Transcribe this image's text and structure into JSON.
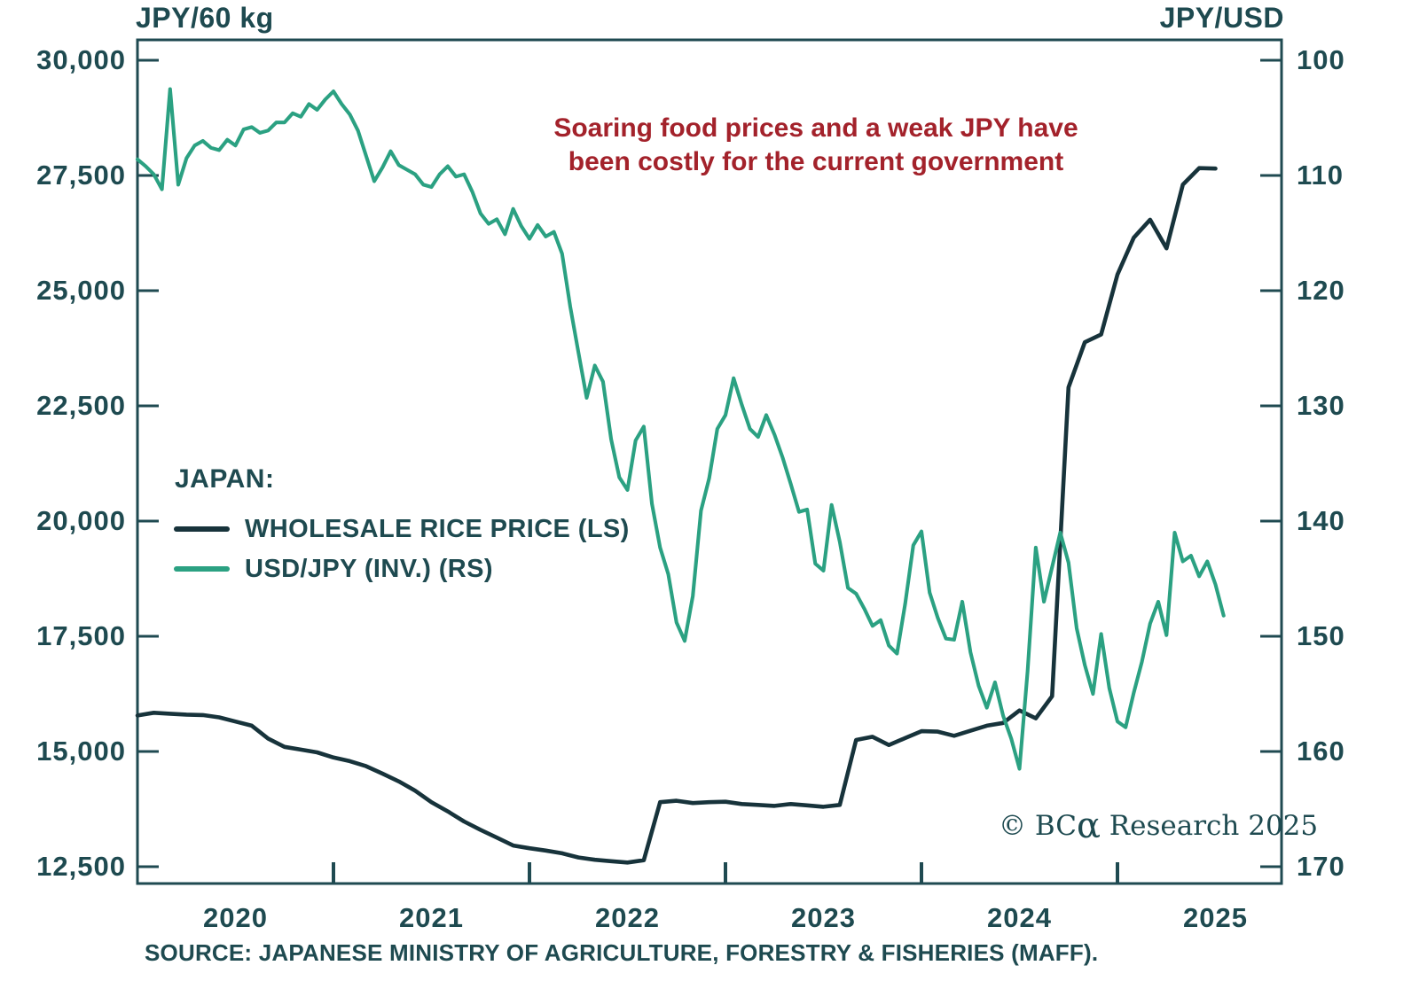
{
  "axes_titles": {
    "left": "JPY/60 kg",
    "right": "JPY/USD"
  },
  "annotation": {
    "line1": "Soaring food prices and a weak JPY have",
    "line2": "been costly for the current government",
    "color": "#A3222B"
  },
  "legend": {
    "title": "JAPAN:",
    "items": [
      {
        "label": "WHOLESALE RICE PRICE (LS)",
        "color": "#17333B"
      },
      {
        "label": "USD/JPY (INV.) (RS)",
        "color": "#2BA182"
      }
    ]
  },
  "watermark": {
    "prefix": "© BC",
    "alpha": "α",
    "suffix": " Research 2025"
  },
  "source_note": "SOURCE: JAPANESE MINISTRY OF AGRICULTURE, FORESTRY & FISHERIES (MAFF).",
  "chart_data": {
    "type": "line",
    "title": "Soaring food prices and a weak JPY have been costly for the current government",
    "grid": false,
    "legend_position": "middle-left",
    "x_axis": {
      "labels": [
        "2020",
        "2021",
        "2022",
        "2023",
        "2024",
        "2025"
      ],
      "tick_years": [
        2021,
        2022,
        2023,
        2024,
        2025
      ],
      "range_years": [
        2020.0,
        2025.83
      ]
    },
    "left_axis": {
      "title": "JPY/60 kg",
      "tick_labels": [
        "30,000",
        "27,500",
        "25,000",
        "22,500",
        "20,000",
        "17,500",
        "15,000",
        "12,500"
      ],
      "tick_values": [
        30000,
        27500,
        25000,
        22500,
        20000,
        17500,
        15000,
        12500
      ],
      "range": [
        12500,
        30000
      ],
      "inverted": false
    },
    "right_axis": {
      "title": "JPY/USD",
      "tick_labels": [
        "100",
        "110",
        "120",
        "130",
        "140",
        "150",
        "160",
        "170"
      ],
      "tick_values": [
        100,
        110,
        120,
        130,
        140,
        150,
        160,
        170
      ],
      "range": [
        100,
        170
      ],
      "inverted": true
    },
    "series": [
      {
        "name": "WHOLESALE RICE PRICE (LS)",
        "axis": "left",
        "color": "#17333B",
        "unit": "JPY per 60 kg",
        "start": "2020-01",
        "points_per_month": 1,
        "values": [
          15780,
          15840,
          15820,
          15800,
          15790,
          15740,
          15650,
          15560,
          15280,
          15100,
          15040,
          14980,
          14870,
          14790,
          14680,
          14520,
          14350,
          14150,
          13900,
          13700,
          13480,
          13300,
          13130,
          12960,
          12900,
          12850,
          12790,
          12700,
          12650,
          12620,
          12590,
          12640,
          13900,
          13930,
          13880,
          13900,
          13910,
          13860,
          13840,
          13820,
          13860,
          13830,
          13800,
          13840,
          15250,
          15320,
          15140,
          15290,
          15440,
          15430,
          15340,
          15450,
          15560,
          15620,
          15890,
          15720,
          16200,
          22900,
          23880,
          24050,
          25350,
          26150,
          26540,
          25920,
          27300,
          27660,
          27650
        ]
      },
      {
        "name": "USD/JPY (INV.) (RS)",
        "axis": "right",
        "color": "#2BA182",
        "unit": "JPY per USD",
        "start": "2020-01",
        "points_per_month": 2,
        "values": [
          108.6,
          109.2,
          109.9,
          111.2,
          102.5,
          110.8,
          108.5,
          107.4,
          107.0,
          107.6,
          107.8,
          106.9,
          107.4,
          106.0,
          105.8,
          106.3,
          106.1,
          105.4,
          105.4,
          104.6,
          104.9,
          103.8,
          104.3,
          103.4,
          102.7,
          103.8,
          104.7,
          106.1,
          108.3,
          110.5,
          109.3,
          107.9,
          109.1,
          109.5,
          109.9,
          110.8,
          111.0,
          109.9,
          109.2,
          110.1,
          109.9,
          111.4,
          113.3,
          114.2,
          113.8,
          115.1,
          112.9,
          114.4,
          115.5,
          114.3,
          115.3,
          114.9,
          116.8,
          121.4,
          125.4,
          129.3,
          126.5,
          127.9,
          132.9,
          136.2,
          137.3,
          133.0,
          131.8,
          138.5,
          142.3,
          144.6,
          148.8,
          150.4,
          146.5,
          139.1,
          136.3,
          132.0,
          130.8,
          127.6,
          129.9,
          132.0,
          132.7,
          130.8,
          132.5,
          134.5,
          136.8,
          139.2,
          139.0,
          143.7,
          144.3,
          138.6,
          141.8,
          145.8,
          146.3,
          147.6,
          149.1,
          148.6,
          150.8,
          151.5,
          147.2,
          142.1,
          140.9,
          146.2,
          148.4,
          150.2,
          150.3,
          147.0,
          151.4,
          154.3,
          156.2,
          154.0,
          156.9,
          158.9,
          161.5,
          153.0,
          142.3,
          147.0,
          144.0,
          141.0,
          143.6,
          149.3,
          152.5,
          155.0,
          149.8,
          154.5,
          157.4,
          157.9,
          154.9,
          152.2,
          148.9,
          147.0,
          149.9,
          141.0,
          143.5,
          143.0,
          144.8,
          143.5,
          145.5,
          148.2
        ]
      }
    ]
  }
}
